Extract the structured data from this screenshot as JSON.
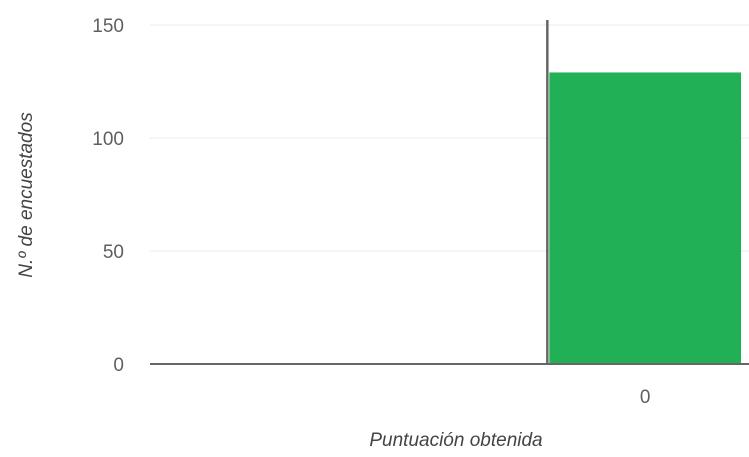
{
  "chart_data": {
    "type": "bar",
    "title": "",
    "xlabel": "Puntuación obtenida",
    "ylabel": "N.º de encuestados",
    "categories": [
      "0"
    ],
    "values": [
      129
    ],
    "x_range": [
      -1,
      0.5
    ],
    "ylim": [
      0,
      150
    ],
    "yticks": [
      0,
      50,
      100,
      150
    ],
    "ytick_labels": [
      "0",
      "50",
      "100",
      "150"
    ],
    "xtick_labels": [
      "0"
    ],
    "grid": true,
    "legend": "none",
    "bar_color": "#22b057",
    "axis_color": "#666666",
    "grid_color": "#ebebeb"
  }
}
